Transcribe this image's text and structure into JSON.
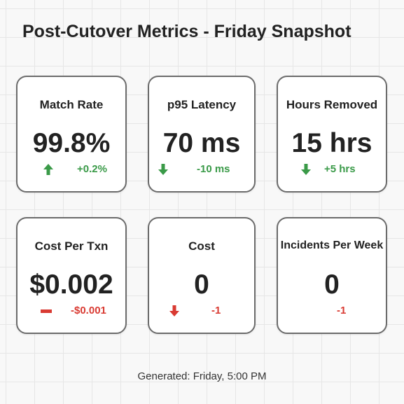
{
  "title": "Post-Cutover Metrics - Friday Snapshot",
  "cards": [
    {
      "label": "Match Rate",
      "value": "99.8%",
      "delta": "+0.2%",
      "trend_icon": "arrow-up-icon",
      "trend_color": "#3a9a48"
    },
    {
      "label": "p95 Latency",
      "value": "70 ms",
      "delta": "-10 ms",
      "trend_icon": "arrow-down-icon",
      "trend_color": "#3a9a48"
    },
    {
      "label": "Hours Removed",
      "value": "15 hrs",
      "delta": "+5 hrs",
      "trend_icon": "arrow-down-icon",
      "trend_color": "#3a9a48"
    },
    {
      "label": "Cost Per Txn",
      "value": "$0.002",
      "delta": "-$0.001",
      "trend_icon": "minus-icon",
      "trend_color": "#d93a32"
    },
    {
      "label": "Cost",
      "value": "0",
      "delta": "-1",
      "trend_icon": "arrow-down-icon",
      "trend_color": "#d93a32"
    },
    {
      "label": "Incidents Per Week",
      "value": "0",
      "delta": "-1",
      "trend_icon": "",
      "trend_color": "#d93a32"
    }
  ],
  "footer": "Generated: Friday, 5:00 PM"
}
